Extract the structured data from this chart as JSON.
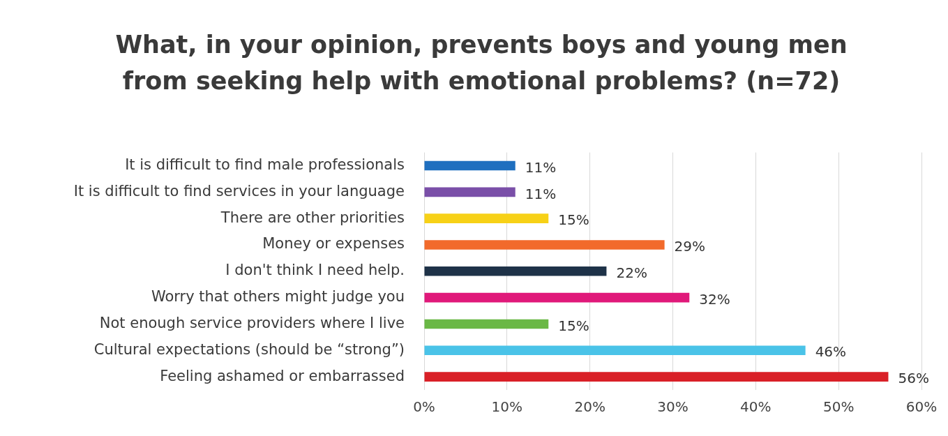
{
  "chart_data": {
    "type": "bar",
    "orientation": "horizontal",
    "title": "What, in your opinion, prevents boys and young men from seeking help with emotional problems? (n=72)",
    "categories": [
      "It is difficult to find male professionals",
      "It is difficult to find services in your language",
      "There are other priorities",
      "Money or expenses",
      "I don't think I need help.",
      "Worry that others might judge you",
      "Not enough service providers where I live",
      "Cultural expectations (should be “strong”)",
      "Feeling ashamed or embarrassed"
    ],
    "values": [
      11,
      11,
      15,
      29,
      22,
      32,
      15,
      46,
      56
    ],
    "value_labels": [
      "11%",
      "11%",
      "15%",
      "29%",
      "22%",
      "32%",
      "15%",
      "46%",
      "56%"
    ],
    "colors": [
      "#1f6fbf",
      "#7a4fa8",
      "#f7d117",
      "#f26a2b",
      "#1e3248",
      "#e0197a",
      "#6ab845",
      "#4ac3e8",
      "#d92027"
    ],
    "xlim": [
      0,
      60
    ],
    "xticks": [
      {
        "value": 0,
        "label": "0%"
      },
      {
        "value": 10,
        "label": "10%"
      },
      {
        "value": 20,
        "label": "20%"
      },
      {
        "value": 30,
        "label": "30%"
      },
      {
        "value": 40,
        "label": "40%"
      },
      {
        "value": 50,
        "label": "50%"
      },
      {
        "value": 60,
        "label": "60%"
      }
    ],
    "grid": "x",
    "legend": false
  }
}
